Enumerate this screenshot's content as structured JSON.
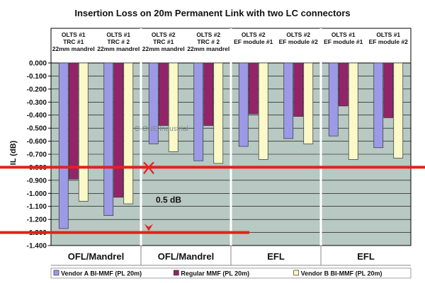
{
  "chart_data": {
    "type": "bar",
    "title": "Insertion Loss on 20m Permanent Link with two LC connectors",
    "ylabel": "IL (dB)",
    "xlabel": "",
    "ylim": [
      -1.4,
      0.0
    ],
    "yticks": [
      "0.000",
      "-0.100",
      "-0.200",
      "-0.300",
      "-0.400",
      "-0.500",
      "-0.600",
      "-0.700",
      "-0.800",
      "-0.900",
      "-1.000",
      "-1.100",
      "-1.200",
      "-1.300",
      "-1.400"
    ],
    "grid": true,
    "groups": [
      {
        "label": "OFL/Mandrel",
        "subgroups": [
          {
            "header": [
              "OLTS #1",
              "TRC #1",
              "22mm mandrel"
            ],
            "values": [
              -1.27,
              -0.89,
              -1.06
            ]
          },
          {
            "header": [
              "OLTS #1",
              "TRC # 2",
              "22mm mandrel"
            ],
            "values": [
              -1.17,
              -1.03,
              -1.08
            ]
          }
        ]
      },
      {
        "label": "OFL/Mandrel",
        "subgroups": [
          {
            "header": [
              "OLTS #2",
              "TRC #1",
              "22mm mandrel"
            ],
            "values": [
              -0.62,
              -0.48,
              -0.68
            ]
          },
          {
            "header": [
              "OLTS #2",
              "TRC # 2",
              "22mm mandrel"
            ],
            "values": [
              -0.75,
              -0.48,
              -0.77
            ]
          }
        ]
      },
      {
        "label": "EFL",
        "subgroups": [
          {
            "header": [
              "OLTS #2",
              "EF module #1"
            ],
            "values": [
              -0.64,
              -0.39,
              -0.74
            ]
          },
          {
            "header": [
              "OLTS #2",
              "EF module #2"
            ],
            "values": [
              -0.58,
              -0.41,
              -0.62
            ]
          }
        ]
      },
      {
        "label": "EFL",
        "subgroups": [
          {
            "header": [
              "OLTS #1",
              "EF module #1"
            ],
            "values": [
              -0.56,
              -0.33,
              -0.74
            ]
          },
          {
            "header": [
              "OLTS #1",
              "EF module #2"
            ],
            "values": [
              -0.65,
              -0.42,
              -0.73
            ]
          }
        ]
      }
    ],
    "series": [
      {
        "name": "Vendor A BI-MMF (PL 20m)",
        "color": "#9c9ae6"
      },
      {
        "name": "Regular MMF (PL 20m)",
        "color": "#93246a"
      },
      {
        "name": "Vendor B BI-MMF (PL 20m)",
        "color": "#fcf9c9"
      }
    ],
    "reference_lines": [
      -0.8,
      -1.3
    ],
    "annotation": "0.5 dB",
    "legend_position": "bottom",
    "watermark": "C-ONE Industrial"
  }
}
